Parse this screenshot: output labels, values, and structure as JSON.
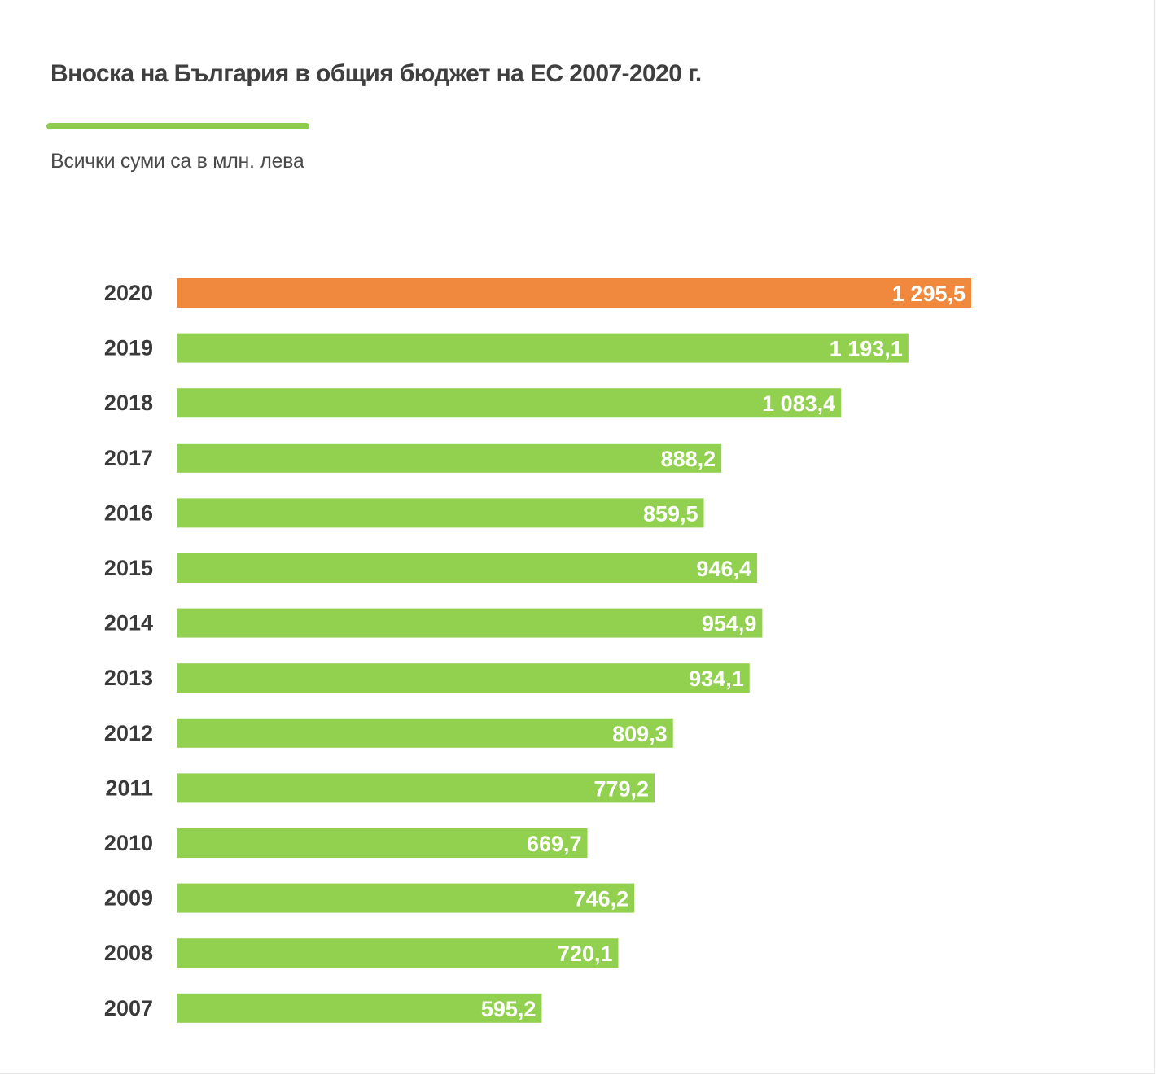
{
  "title": "Вноска на България в общия бюджет на ЕС 2007-2020 г.",
  "subtitle": "Всички суми са в млн. лева",
  "colors": {
    "bar": "#92d050",
    "highlight": "#f0883e",
    "accent_rule": "#8dcc4a",
    "value_text": "#ffffff",
    "label_text": "#3a3a3a"
  },
  "chart_data": {
    "type": "bar",
    "orientation": "horizontal",
    "title": "Вноска на България в общия бюджет на ЕС 2007-2020 г.",
    "subtitle": "Всички суми са в млн. лева",
    "categories": [
      "2020",
      "2019",
      "2018",
      "2017",
      "2016",
      "2015",
      "2014",
      "2013",
      "2012",
      "2011",
      "2010",
      "2009",
      "2008",
      "2007"
    ],
    "values": [
      1295.5,
      1193.1,
      1083.4,
      888.2,
      859.5,
      946.4,
      954.9,
      934.1,
      809.3,
      779.2,
      669.7,
      746.2,
      720.1,
      595.2
    ],
    "value_labels": [
      "1 295,5",
      "1 193,1",
      "1 083,4",
      "888,2",
      "859,5",
      "946,4",
      "954,9",
      "934,1",
      "809,3",
      "779,2",
      "669,7",
      "746,2",
      "720,1",
      "595,2"
    ],
    "highlight_categories": [
      "2020"
    ],
    "grid": false,
    "legend": "none"
  }
}
